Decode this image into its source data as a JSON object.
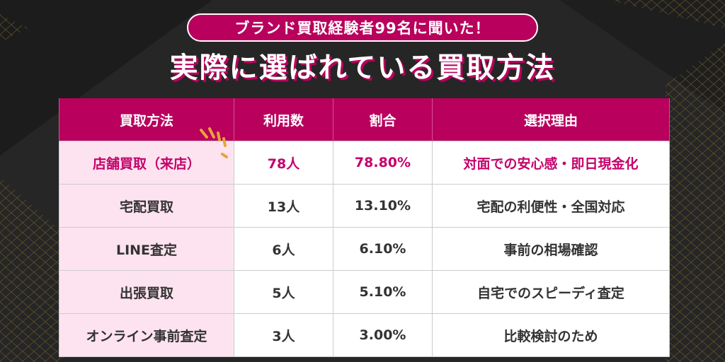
{
  "header": {
    "badge_text": "ブランド買取経験者99名に聞いた！",
    "title": "実際に選ばれている買取方法"
  },
  "table": {
    "columns": [
      "買取方法",
      "利用数",
      "割合",
      "選択理由"
    ],
    "rows": [
      {
        "method": "店舗買取（来店）",
        "count": "78人",
        "ratio": "78.80%",
        "reason": "対面での安心感・即日現金化"
      },
      {
        "method": "宅配買取",
        "count": "13人",
        "ratio": "13.10%",
        "reason": "宅配の利便性・全国対応"
      },
      {
        "method": "LINE査定",
        "count": "6人",
        "ratio": "6.10%",
        "reason": "事前の相場確認"
      },
      {
        "method": "出張買取",
        "count": "5人",
        "ratio": "5.10%",
        "reason": "自宅でのスピーディ査定"
      },
      {
        "method": "オンライン事前査定",
        "count": "3人",
        "ratio": "3.00%",
        "reason": "比較検討のため"
      }
    ]
  },
  "colors": {
    "accent": "#b8005c",
    "highlight_text": "#c4006b",
    "method_cell_bg": "#fde3ef",
    "background": "#262626",
    "spark": "#e8a33a"
  }
}
